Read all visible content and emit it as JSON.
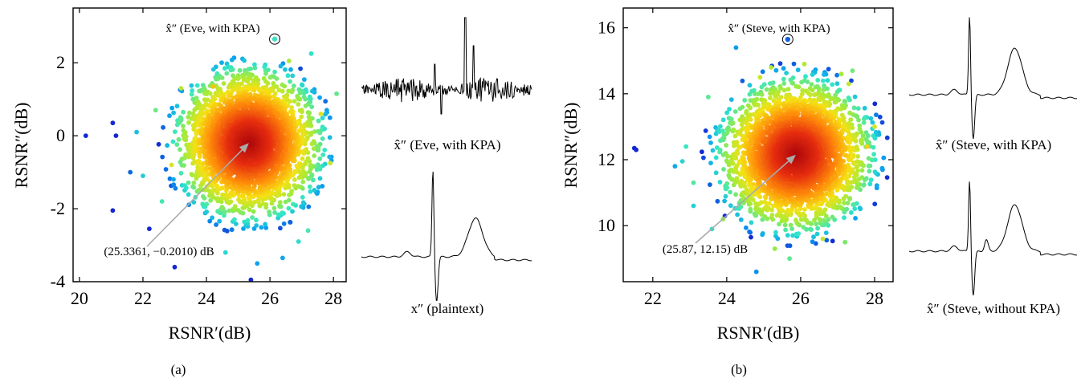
{
  "chart_data": [
    {
      "type": "scatter",
      "panel_label": "(a)",
      "xlabel": "RSNR′(dB)",
      "ylabel": "RSNR″(dB)",
      "xlim": [
        19.8,
        28.4
      ],
      "ylim": [
        -4.0,
        3.5
      ],
      "xticks": [
        20,
        22,
        24,
        26,
        28
      ],
      "yticks": [
        -4,
        -2,
        0,
        2
      ],
      "ytick_labels": [
        "-4",
        "-2",
        "0",
        "2"
      ],
      "grid": false,
      "center": [
        25.3361,
        -0.201
      ],
      "spread": [
        0.95,
        0.85
      ],
      "colormap": "density: dark red (dense) → orange → yellow → green → cyan → blue (sparse)",
      "annotation": {
        "text": "(25.3361, −0.2010) dB",
        "point": [
          25.3361,
          -0.201
        ]
      },
      "highlighted": {
        "label": "x̂″ (Eve, with KPA)",
        "point": [
          26.15,
          2.65
        ]
      },
      "outliers": [
        [
          20.2,
          0.0
        ],
        [
          21.05,
          0.35
        ],
        [
          21.15,
          0.0
        ],
        [
          21.05,
          -2.05
        ],
        [
          22.0,
          -1.1
        ],
        [
          21.6,
          -1.0
        ],
        [
          22.2,
          -2.55
        ],
        [
          23.0,
          -3.6
        ],
        [
          25.4,
          -3.95
        ],
        [
          25.6,
          -3.5
        ],
        [
          26.4,
          -3.35
        ],
        [
          27.2,
          -2.6
        ],
        [
          27.9,
          -0.75
        ],
        [
          28.1,
          1.15
        ],
        [
          27.3,
          2.25
        ],
        [
          26.6,
          2.05
        ],
        [
          24.2,
          1.35
        ],
        [
          23.2,
          1.3
        ],
        [
          22.6,
          -1.8
        ],
        [
          21.8,
          0.1
        ],
        [
          22.9,
          -0.8
        ],
        [
          26.9,
          -2.9
        ],
        [
          24.6,
          -3.2
        ],
        [
          22.4,
          0.7
        ],
        [
          27.6,
          0.6
        ]
      ],
      "waveforms": [
        {
          "caption": "x̂″ (Eve, with KPA)",
          "kind": "noisy"
        },
        {
          "caption": "x″ (plaintext)",
          "kind": "ecg"
        }
      ]
    },
    {
      "type": "scatter",
      "panel_label": "(b)",
      "xlabel": "RSNR′(dB)",
      "ylabel": "RSNR″(dB)",
      "xlim": [
        21.2,
        28.5
      ],
      "ylim": [
        8.3,
        16.6
      ],
      "xticks": [
        22,
        24,
        26,
        28
      ],
      "yticks": [
        10,
        12,
        14,
        16
      ],
      "ytick_labels": [
        "10",
        "12",
        "14",
        "16"
      ],
      "grid": false,
      "center": [
        25.87,
        12.15
      ],
      "spread": [
        0.85,
        0.95
      ],
      "colormap": "density: dark red (dense) → orange → yellow → green → cyan → blue (sparse)",
      "annotation": {
        "text": "(25.87, 12.15) dB",
        "point": [
          25.87,
          12.15
        ]
      },
      "highlighted": {
        "label": "x̂″ (Steve, with KPA)",
        "point": [
          25.65,
          15.65
        ]
      },
      "outliers": [
        [
          21.5,
          12.35
        ],
        [
          21.55,
          12.3
        ],
        [
          22.6,
          11.8
        ],
        [
          22.8,
          11.95
        ],
        [
          23.1,
          10.6
        ],
        [
          23.1,
          11.3
        ],
        [
          23.6,
          9.9
        ],
        [
          24.25,
          15.4
        ],
        [
          23.5,
          13.9
        ],
        [
          24.8,
          8.6
        ],
        [
          25.7,
          9.0
        ],
        [
          25.3,
          9.3
        ],
        [
          27.4,
          14.7
        ],
        [
          27.1,
          14.6
        ],
        [
          27.3,
          14.3
        ],
        [
          26.1,
          14.9
        ],
        [
          25.2,
          14.8
        ],
        [
          28.0,
          13.0
        ],
        [
          27.8,
          12.4
        ],
        [
          24.9,
          14.5
        ],
        [
          22.9,
          12.4
        ],
        [
          27.2,
          9.5
        ],
        [
          26.6,
          9.6
        ],
        [
          23.9,
          10.2
        ]
      ],
      "waveforms": [
        {
          "caption": "x̂″ (Steve, with KPA)",
          "kind": "ecg"
        },
        {
          "caption": "x̂″ (Steve, without KPA)",
          "kind": "ecg"
        }
      ]
    }
  ]
}
